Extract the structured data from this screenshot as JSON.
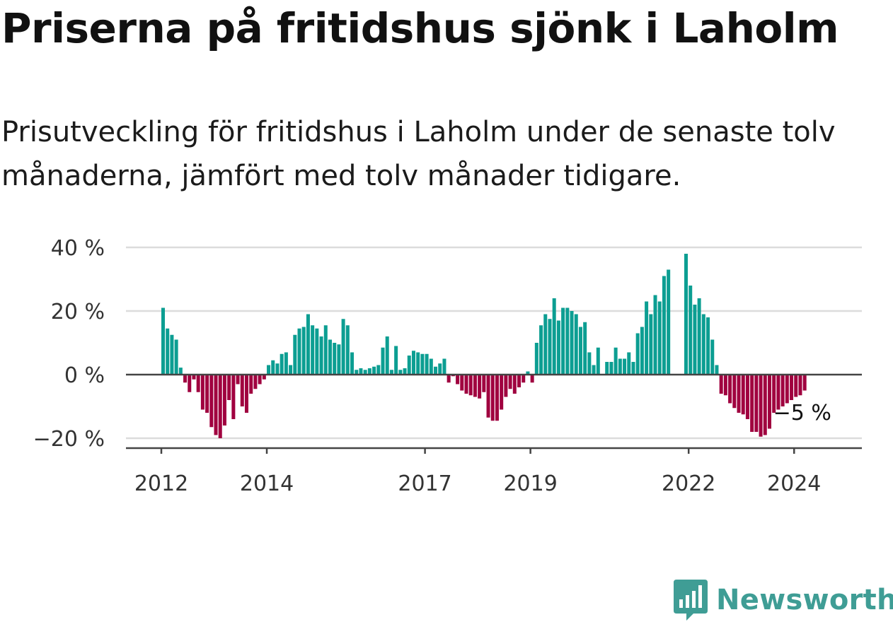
{
  "title": "Priserna på fritidshus sjönk i Laholm",
  "subtitle": "Prisutveckling för fritidshus i Laholm under de senaste tolv månaderna, jämfört med tolv månader tidigare.",
  "logo": {
    "text": "Newsworthy",
    "icon": "newsworthy-chart-icon",
    "color": "#3f9d95"
  },
  "chart_data": {
    "type": "bar",
    "title": "Priserna på fritidshus sjönk i Laholm",
    "subtitle": "Prisutveckling för fritidshus i Laholm under de senaste tolv månaderna, jämfört med tolv månader tidigare.",
    "xlabel": "",
    "ylabel": "",
    "ylim": [
      -22,
      40
    ],
    "yticks": [
      40,
      20,
      0,
      -20
    ],
    "ytick_labels": [
      "40 %",
      "20 %",
      "0 %",
      "−20 %"
    ],
    "xticks": [
      2012,
      2014,
      2017,
      2019,
      2022,
      2024
    ],
    "x_start": "2012-01",
    "grid": true,
    "colors": {
      "positive": "#0c9e92",
      "negative": "#a0003f"
    },
    "end_label": "−5 %",
    "values": [
      21,
      14.5,
      12.5,
      11,
      2.2,
      -2.5,
      -5.5,
      -1.5,
      -5.5,
      -11,
      -12,
      -16.5,
      -19,
      -20,
      -16,
      -8,
      -14,
      -3,
      -10,
      -12,
      -6,
      -4.5,
      -3,
      -1.5,
      3,
      4.5,
      3.5,
      6.5,
      7,
      3,
      12.5,
      14.5,
      15,
      19,
      15.5,
      14.5,
      12,
      15.5,
      11,
      10,
      9.5,
      17.5,
      15.5,
      7,
      1.5,
      2,
      1.5,
      2,
      2.5,
      3,
      8.5,
      12,
      1.5,
      9,
      1.5,
      2,
      6,
      7.5,
      7,
      6.5,
      6.5,
      5,
      2.5,
      3.5,
      5,
      -2.5,
      -0.5,
      -3,
      -5,
      -6,
      -6.5,
      -7,
      -7.5,
      -5.5,
      -13.5,
      -14.5,
      -14.5,
      -11,
      -7,
      -4.5,
      -6,
      -4,
      -2.5,
      1,
      -2.5,
      10,
      15.5,
      19,
      17.5,
      24,
      17,
      21,
      21,
      20,
      19,
      15,
      16.5,
      7,
      3,
      8.5,
      0,
      4,
      4,
      8.5,
      5,
      5,
      7,
      4,
      13,
      15,
      23,
      19,
      25,
      23,
      31,
      33,
      0,
      0,
      0,
      38,
      28,
      22,
      24,
      19,
      18,
      11,
      3,
      -6,
      -6.5,
      -9,
      -10.5,
      -12,
      -12.5,
      -14,
      -18,
      -18,
      -19.5,
      -19,
      -17,
      -12,
      -11,
      -10,
      -9,
      -8,
      -7,
      -6.5,
      -5
    ]
  }
}
